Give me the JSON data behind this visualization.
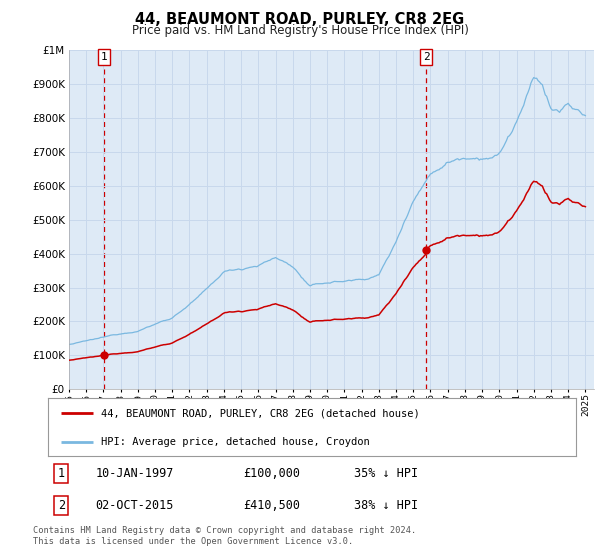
{
  "title": "44, BEAUMONT ROAD, PURLEY, CR8 2EG",
  "subtitle": "Price paid vs. HM Land Registry's House Price Index (HPI)",
  "sale1_date": "10-JAN-1997",
  "sale1_price": 100000,
  "sale1_label": "35% ↓ HPI",
  "sale1_year": 1997.04,
  "sale2_date": "02-OCT-2015",
  "sale2_price": 410500,
  "sale2_label": "38% ↓ HPI",
  "sale2_year": 2015.75,
  "legend_line1": "44, BEAUMONT ROAD, PURLEY, CR8 2EG (detached house)",
  "legend_line2": "HPI: Average price, detached house, Croydon",
  "footer": "Contains HM Land Registry data © Crown copyright and database right 2024.\nThis data is licensed under the Open Government Licence v3.0.",
  "hpi_color": "#7ab8e0",
  "price_color": "#cc0000",
  "marker_color": "#cc0000",
  "dashed_color": "#cc0000",
  "bg_color": "#deeaf6",
  "grid_color": "#c8d8ec",
  "ylim_min": 0,
  "ylim_max": 1000000,
  "xmin": 1995.0,
  "xmax": 2025.5
}
